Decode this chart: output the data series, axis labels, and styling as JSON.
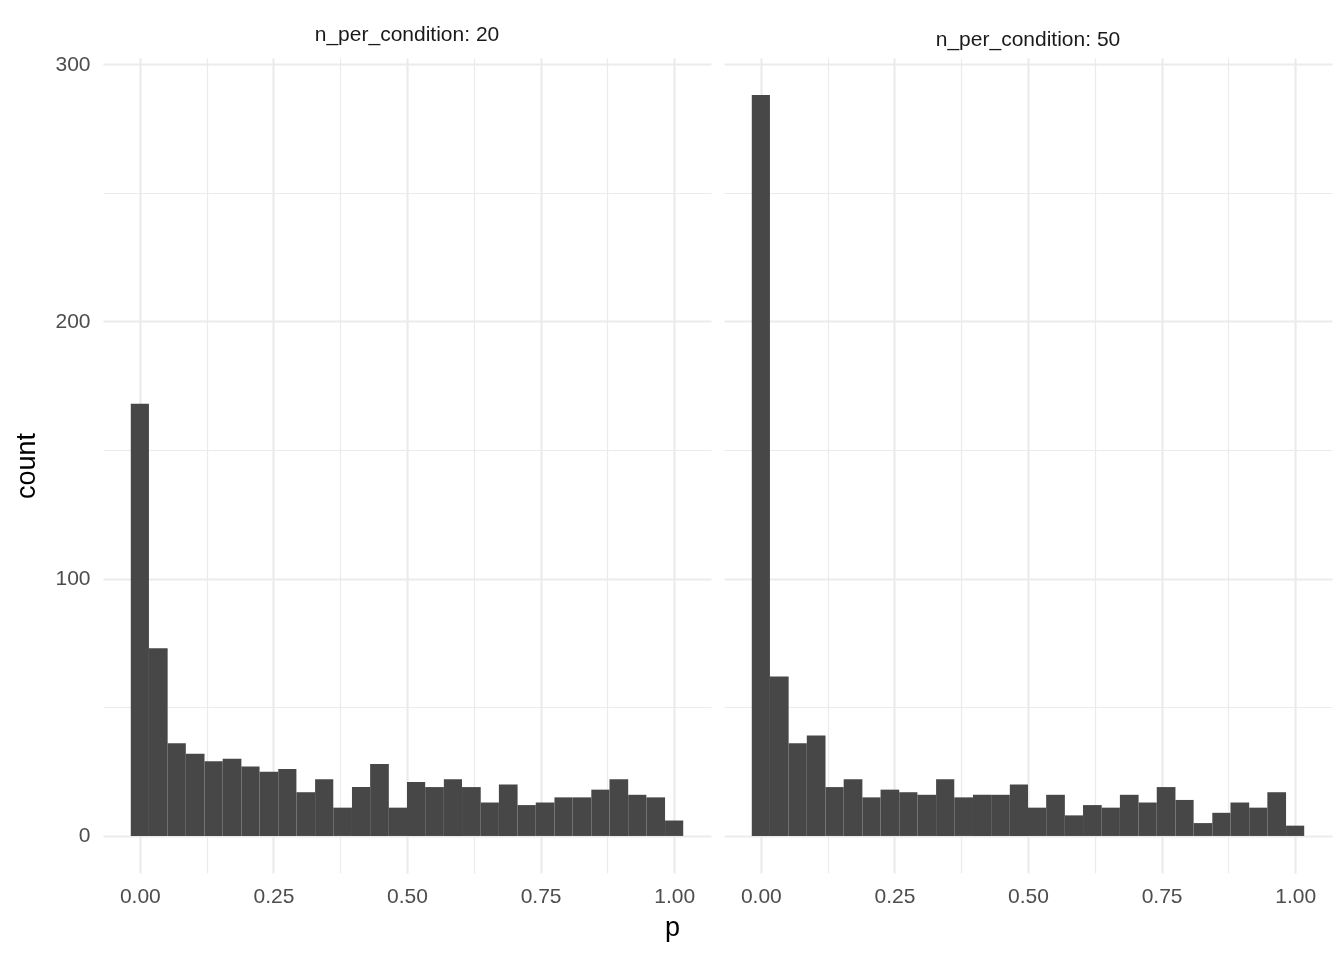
{
  "chart_data": [
    {
      "type": "histogram",
      "title": "n_per_condition: 20",
      "xlabel": "p",
      "ylabel": "count",
      "color": "#474747",
      "bins": [
        -0.017,
        0.017,
        0.052,
        0.086,
        0.121,
        0.155,
        0.19,
        0.224,
        0.259,
        0.293,
        0.328,
        0.362,
        0.397,
        0.431,
        0.466,
        0.5,
        0.534,
        0.569,
        0.603,
        0.638,
        0.672,
        0.707,
        0.741,
        0.776,
        0.81,
        0.845,
        0.879,
        0.914,
        0.948,
        0.983,
        1.017
      ],
      "values": [
        168,
        73,
        36,
        32,
        29,
        30,
        27,
        25,
        26,
        17,
        22,
        11,
        19,
        28,
        11,
        21,
        19,
        22,
        19,
        13,
        20,
        12,
        13,
        15,
        15,
        18,
        22,
        16,
        15,
        6
      ],
      "xlim": [
        -0.069,
        1.069
      ],
      "xticks": [
        {
          "value": 0,
          "label": "0.00"
        },
        {
          "value": 0.125,
          "label": null
        },
        {
          "value": 0.25,
          "label": "0.25"
        },
        {
          "value": 0.375,
          "label": null
        },
        {
          "value": 0.5,
          "label": "0.50"
        },
        {
          "value": 0.625,
          "label": null
        },
        {
          "value": 0.75,
          "label": "0.75"
        },
        {
          "value": 0.875,
          "label": null
        },
        {
          "value": 1,
          "label": "1.00"
        }
      ],
      "ylim": [
        -14.4,
        302.4
      ],
      "yticks": [
        0,
        {
          "value": 50,
          "label": null
        },
        100,
        {
          "value": 150,
          "label": null
        },
        200,
        {
          "value": 250,
          "label": null
        },
        300
      ],
      "grid": true
    },
    {
      "type": "histogram",
      "title": "n_per_condition: 50",
      "color": "#474747",
      "bins": [
        -0.017,
        0.017,
        0.052,
        0.086,
        0.121,
        0.155,
        0.19,
        0.224,
        0.259,
        0.293,
        0.328,
        0.362,
        0.397,
        0.431,
        0.466,
        0.5,
        0.534,
        0.569,
        0.603,
        0.638,
        0.672,
        0.707,
        0.741,
        0.776,
        0.81,
        0.845,
        0.879,
        0.914,
        0.948,
        0.983,
        1.017
      ],
      "values": [
        288,
        62,
        36,
        39,
        19,
        22,
        15,
        18,
        17,
        16,
        22,
        15,
        16,
        16,
        20,
        11,
        16,
        8,
        12,
        11,
        16,
        13,
        19,
        14,
        5,
        9,
        13,
        11,
        17,
        4
      ],
      "xlim": [
        -0.069,
        1.069
      ],
      "xticks": [
        {
          "value": 0,
          "label": "0.00"
        },
        {
          "value": 0.125,
          "label": null
        },
        {
          "value": 0.25,
          "label": "0.25"
        },
        {
          "value": 0.375,
          "label": null
        },
        {
          "value": 0.5,
          "label": "0.50"
        },
        {
          "value": 0.625,
          "label": null
        },
        {
          "value": 0.75,
          "label": "0.75"
        },
        {
          "value": 0.875,
          "label": null
        },
        {
          "value": 1,
          "label": "1.00"
        }
      ],
      "ylim": [
        -14.4,
        302.4
      ],
      "yticks": [
        0,
        {
          "value": 50,
          "label": null
        },
        100,
        {
          "value": 150,
          "label": null
        },
        200,
        {
          "value": 250,
          "label": null
        },
        300
      ],
      "grid": true,
      "tick_labels": "x"
    }
  ]
}
